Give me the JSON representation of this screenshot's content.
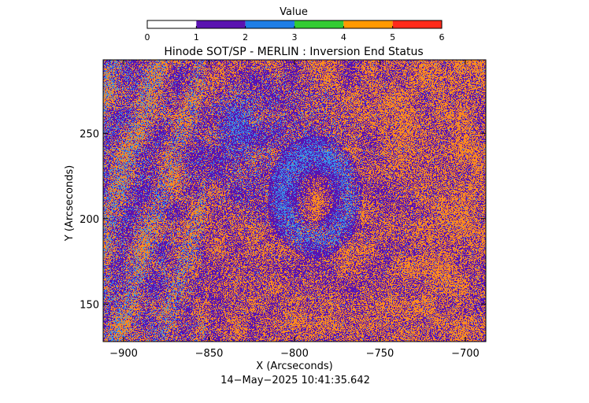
{
  "colorbar": {
    "title": "Value",
    "ticks": [
      "0",
      "1",
      "2",
      "3",
      "4",
      "5",
      "6"
    ],
    "segments": [
      {
        "from": 0,
        "to": 1,
        "color": "#ffffff"
      },
      {
        "from": 1,
        "to": 2,
        "color": "#5a12b0"
      },
      {
        "from": 2,
        "to": 3,
        "color": "#1f7ee6"
      },
      {
        "from": 3,
        "to": 4,
        "color": "#33cc33"
      },
      {
        "from": 4,
        "to": 5,
        "color": "#ff9900"
      },
      {
        "from": 5,
        "to": 6,
        "color": "#ff2a1a"
      }
    ]
  },
  "chart_data": {
    "type": "heatmap",
    "title": "Hinode SOT/SP - MERLIN : Inversion End Status",
    "xlabel": "X (Arcseconds)",
    "ylabel": "Y (Arcseconds)",
    "xlim": [
      -912,
      -688
    ],
    "ylim": [
      128,
      293
    ],
    "x_ticks": [
      -900,
      -850,
      -800,
      -750,
      -700
    ],
    "y_ticks": [
      150,
      200,
      250
    ],
    "x_tick_labels": [
      "−900",
      "−850",
      "−800",
      "−750",
      "−700"
    ],
    "y_tick_labels": [
      "150",
      "200",
      "250"
    ],
    "value_range": [
      0,
      6
    ],
    "dominant_values": [
      {
        "value": 4.5,
        "label": "orange",
        "color": "#ff8a1f"
      },
      {
        "value": 1.5,
        "label": "purple",
        "color": "#5a12b0"
      },
      {
        "value": 2.5,
        "label": "blue",
        "color": "#3b8ee8"
      }
    ],
    "features": [
      {
        "name": "ring",
        "x": -788,
        "y": 213,
        "dominant": "blue"
      },
      {
        "name": "core",
        "x": -787,
        "y": 213,
        "dominant": "orange"
      },
      {
        "name": "small-spot",
        "x": -834,
        "y": 256,
        "dominant": "blue"
      }
    ],
    "grid": false
  },
  "footer": {
    "timestamp": "14−May−2025 10:41:35.642"
  }
}
